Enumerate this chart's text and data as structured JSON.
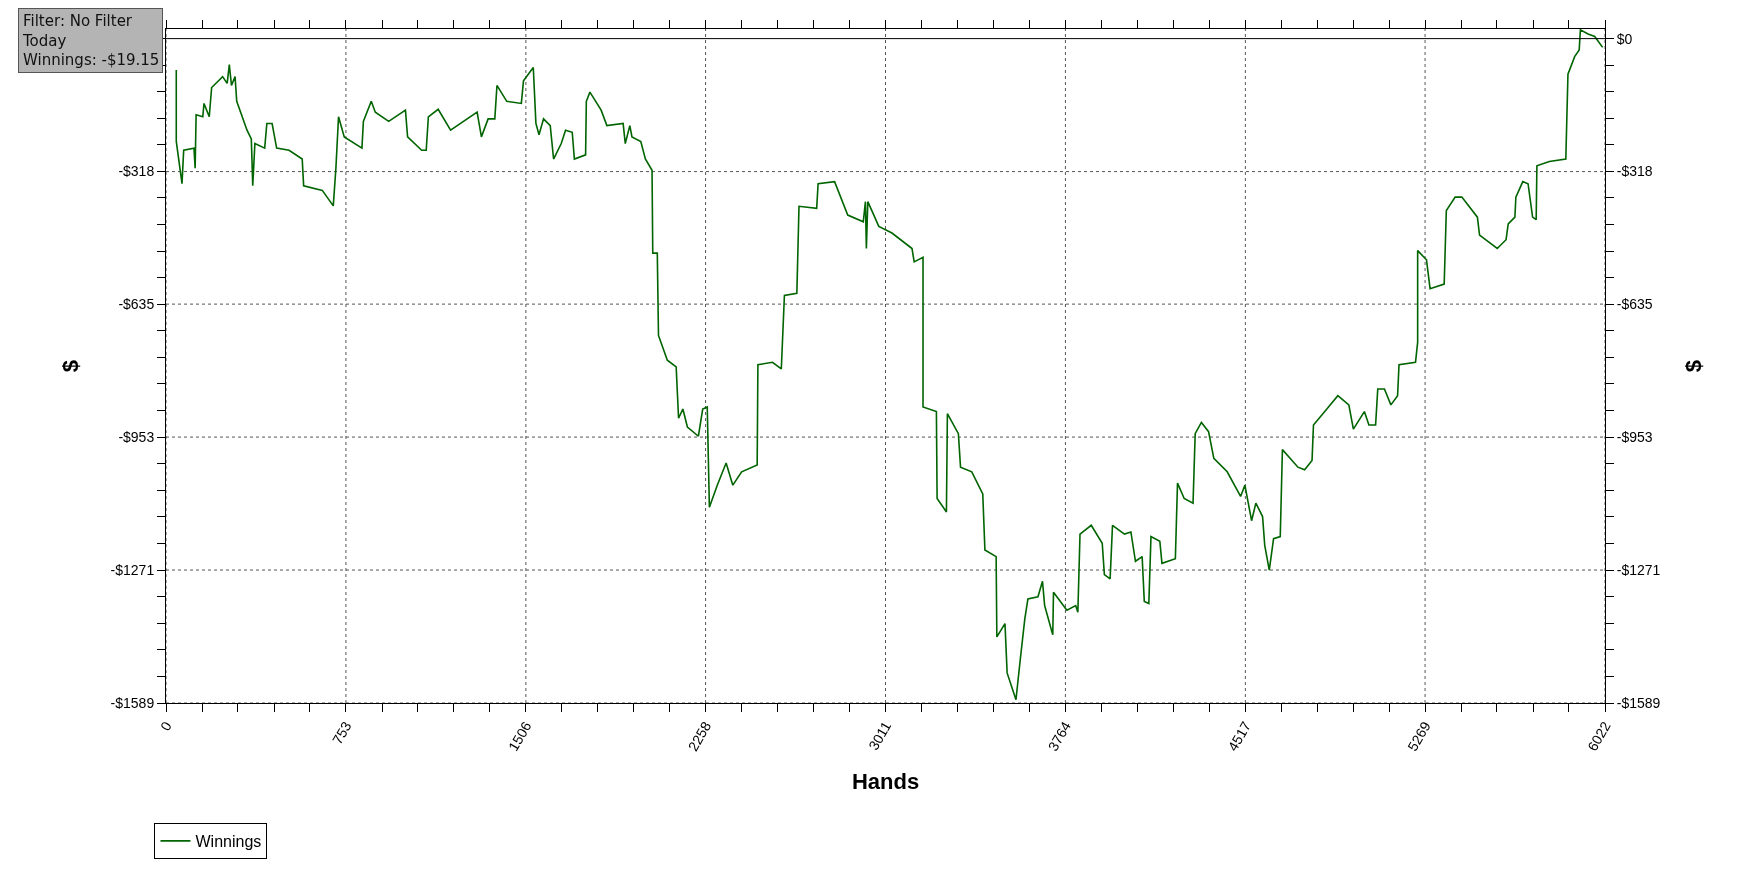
{
  "chart_data": {
    "type": "line",
    "xlabel": "Hands",
    "ylabel": "$",
    "y2label": "$",
    "annotations": [
      "Filter: No Filter\nToday\nWinnings: -$19.15"
    ],
    "xlim": [
      0,
      6022
    ],
    "xticks": [
      0,
      {
        "value": 151,
        "label": null
      },
      {
        "value": 301,
        "label": null
      },
      {
        "value": 452,
        "label": null
      },
      {
        "value": 602,
        "label": null
      },
      753,
      {
        "value": 904,
        "label": null
      },
      {
        "value": 1054,
        "label": null
      },
      {
        "value": 1205,
        "label": null
      },
      {
        "value": 1355,
        "label": null
      },
      1506,
      {
        "value": 1656,
        "label": null
      },
      {
        "value": 1807,
        "label": null
      },
      {
        "value": 1957,
        "label": null
      },
      {
        "value": 2108,
        "label": null
      },
      2258,
      {
        "value": 2409,
        "label": null
      },
      {
        "value": 2559,
        "label": null
      },
      {
        "value": 2710,
        "label": null
      },
      {
        "value": 2860,
        "label": null
      },
      3011,
      {
        "value": 3162,
        "label": null
      },
      {
        "value": 3312,
        "label": null
      },
      {
        "value": 3463,
        "label": null
      },
      {
        "value": 3613,
        "label": null
      },
      3764,
      {
        "value": 3915,
        "label": null
      },
      {
        "value": 4065,
        "label": null
      },
      {
        "value": 4216,
        "label": null
      },
      {
        "value": 4366,
        "label": null
      },
      4517,
      {
        "value": 4668,
        "label": null
      },
      {
        "value": 4818,
        "label": null
      },
      {
        "value": 4968,
        "label": null
      },
      {
        "value": 5119,
        "label": null
      },
      5269,
      {
        "value": 5420,
        "label": null
      },
      {
        "value": 5570,
        "label": null
      },
      {
        "value": 5721,
        "label": null
      },
      {
        "value": 5871,
        "label": null
      },
      6022
    ],
    "ylim": [
      -1589,
      23
    ],
    "yticks": [
      {
        "value": 0,
        "label": null
      },
      {
        "value": -64,
        "label": null
      },
      {
        "value": -127,
        "label": null
      },
      {
        "value": -191,
        "label": null
      },
      {
        "value": -254,
        "label": null
      },
      {
        "value": -318,
        "label": "-$318"
      },
      {
        "value": -381,
        "label": null
      },
      {
        "value": -445,
        "label": null
      },
      {
        "value": -508,
        "label": null
      },
      {
        "value": -572,
        "label": null
      },
      {
        "value": -635,
        "label": "-$635"
      },
      {
        "value": -699,
        "label": null
      },
      {
        "value": -762,
        "label": null
      },
      {
        "value": -826,
        "label": null
      },
      {
        "value": -889,
        "label": null
      },
      {
        "value": -953,
        "label": "-$953"
      },
      {
        "value": -1017,
        "label": null
      },
      {
        "value": -1080,
        "label": null
      },
      {
        "value": -1144,
        "label": null
      },
      {
        "value": -1207,
        "label": null
      },
      {
        "value": -1271,
        "label": "-$1271"
      },
      {
        "value": -1335,
        "label": null
      },
      {
        "value": -1398,
        "label": null
      },
      {
        "value": -1462,
        "label": null
      },
      {
        "value": -1525,
        "label": null
      },
      {
        "value": -1589,
        "label": "-$1589"
      }
    ],
    "y2lim": [
      -1589,
      23
    ],
    "y2ticks": [
      {
        "value": 0,
        "label": "$0"
      },
      {
        "value": -64,
        "label": null
      },
      {
        "value": -127,
        "label": null
      },
      {
        "value": -191,
        "label": null
      },
      {
        "value": -254,
        "label": null
      },
      {
        "value": -318,
        "label": "-$318"
      },
      {
        "value": -381,
        "label": null
      },
      {
        "value": -445,
        "label": null
      },
      {
        "value": -508,
        "label": null
      },
      {
        "value": -572,
        "label": null
      },
      {
        "value": -635,
        "label": "-$635"
      },
      {
        "value": -699,
        "label": null
      },
      {
        "value": -762,
        "label": null
      },
      {
        "value": -826,
        "label": null
      },
      {
        "value": -889,
        "label": null
      },
      {
        "value": -953,
        "label": "-$953"
      },
      {
        "value": -1017,
        "label": null
      },
      {
        "value": -1080,
        "label": null
      },
      {
        "value": -1144,
        "label": null
      },
      {
        "value": -1207,
        "label": null
      },
      {
        "value": -1271,
        "label": "-$1271"
      },
      {
        "value": -1335,
        "label": null
      },
      {
        "value": -1398,
        "label": null
      },
      {
        "value": -1462,
        "label": null
      },
      {
        "value": -1525,
        "label": null
      },
      {
        "value": -1589,
        "label": "-$1589"
      }
    ],
    "ref_lines": [
      {
        "axis": "y",
        "value": 0,
        "label": null,
        "color": "#000000",
        "line_style": "solid"
      }
    ],
    "grid": true,
    "legend": "bottom left",
    "marker": "none",
    "line_style": "solid",
    "series": [
      {
        "name": "Winnings",
        "color": "#006400",
        "x": [
          43,
          43,
          67,
          74,
          117,
          122,
          126,
          154,
          159,
          181,
          191,
          237,
          256,
          265,
          274,
          289,
          296,
          339,
          357,
          363,
          372,
          413,
          422,
          444,
          463,
          515,
          570,
          576,
          654,
          700,
          711,
          722,
          746,
          820,
          826,
          859,
          876,
          932,
          1002,
          1011,
          1070,
          1089,
          1098,
          1139,
          1191,
          1302,
          1320,
          1348,
          1376,
          1385,
          1426,
          1487,
          1496,
          1537,
          1548,
          1561,
          1580,
          1608,
          1622,
          1654,
          1672,
          1700,
          1709,
          1756,
          1759,
          1774,
          1821,
          1845,
          1913,
          1922,
          1941,
          1950,
          1987,
          2006,
          2034,
          2037,
          2056,
          2061,
          2098,
          2135,
          2145,
          2163,
          2182,
          2228,
          2246,
          2265,
          2274,
          2307,
          2344,
          2372,
          2409,
          2474,
          2477,
          2538,
          2575,
          2588,
          2640,
          2649,
          2723,
          2729,
          2798,
          2853,
          2918,
          2927,
          2931,
          2937,
          2983,
          3038,
          3122,
          3131,
          3168,
          3168,
          3224,
          3227,
          3266,
          3270,
          3316,
          3325,
          3372,
          3418,
          3427,
          3474,
          3477,
          3511,
          3520,
          3557,
          3575,
          3594,
          3607,
          3649,
          3668,
          3677,
          3711,
          3714,
          3770,
          3807,
          3816,
          3825,
          3872,
          3918,
          3927,
          3951,
          3961,
          4011,
          4038,
          4057,
          4085,
          4094,
          4113,
          4122,
          4159,
          4168,
          4224,
          4233,
          4261,
          4298,
          4307,
          4333,
          4363,
          4385,
          4441,
          4497,
          4515,
          4543,
          4561,
          4589,
          4598,
          4617,
          4635,
          4663,
          4672,
          4737,
          4765,
          4796,
          4802,
          4858,
          4904,
          4950,
          4969,
          5015,
          5034,
          5062,
          5071,
          5099,
          5126,
          5154,
          5160,
          5229,
          5238,
          5238,
          5275,
          5290,
          5349,
          5358,
          5395,
          5423,
          5488,
          5497,
          5571,
          5608,
          5617,
          5645,
          5649,
          5678,
          5700,
          5719,
          5734,
          5737,
          5789,
          5858,
          5867,
          5895,
          5914,
          5919,
          5951,
          5979,
          6012
        ],
        "values": [
          -75,
          -246,
          -347,
          -267,
          -262,
          -310,
          -182,
          -187,
          -155,
          -187,
          -117,
          -91,
          -107,
          -62,
          -112,
          -91,
          -150,
          -219,
          -240,
          -352,
          -251,
          -262,
          -203,
          -203,
          -262,
          -267,
          -288,
          -352,
          -363,
          -400,
          -310,
          -187,
          -235,
          -262,
          -198,
          -150,
          -176,
          -198,
          -171,
          -235,
          -267,
          -267,
          -187,
          -169,
          -219,
          -176,
          -235,
          -192,
          -192,
          -112,
          -150,
          -155,
          -101,
          -69,
          -203,
          -230,
          -192,
          -208,
          -288,
          -251,
          -219,
          -224,
          -288,
          -278,
          -150,
          -128,
          -171,
          -208,
          -203,
          -251,
          -208,
          -235,
          -246,
          -288,
          -315,
          -513,
          -513,
          -710,
          -769,
          -785,
          -908,
          -886,
          -929,
          -951,
          -886,
          -881,
          -1121,
          -1068,
          -1015,
          -1068,
          -1036,
          -1020,
          -780,
          -774,
          -790,
          -614,
          -609,
          -401,
          -406,
          -347,
          -342,
          -422,
          -438,
          -390,
          -502,
          -390,
          -449,
          -465,
          -502,
          -534,
          -523,
          -881,
          -892,
          -1100,
          -1132,
          -897,
          -945,
          -1025,
          -1036,
          -1089,
          -1223,
          -1239,
          -1431,
          -1399,
          -1517,
          -1581,
          -1485,
          -1388,
          -1340,
          -1335,
          -1298,
          -1356,
          -1426,
          -1324,
          -1367,
          -1356,
          -1372,
          -1185,
          -1164,
          -1207,
          -1282,
          -1292,
          -1164,
          -1185,
          -1180,
          -1250,
          -1239,
          -1346,
          -1351,
          -1191,
          -1202,
          -1255,
          -1244,
          -1063,
          -1100,
          -1111,
          -945,
          -918,
          -940,
          -1004,
          -1036,
          -1095,
          -1068,
          -1153,
          -1111,
          -1143,
          -1212,
          -1271,
          -1196,
          -1191,
          -983,
          -1025,
          -1031,
          -1009,
          -924,
          -886,
          -854,
          -876,
          -934,
          -892,
          -924,
          -924,
          -838,
          -838,
          -876,
          -854,
          -780,
          -774,
          -726,
          -507,
          -529,
          -598,
          -587,
          -411,
          -379,
          -379,
          -427,
          -470,
          -502,
          -481,
          -443,
          -427,
          -379,
          -342,
          -347,
          -427,
          -433,
          -304,
          -294,
          -288,
          -85,
          -43,
          -27,
          21,
          11,
          5,
          -21
        ]
      }
    ]
  }
}
